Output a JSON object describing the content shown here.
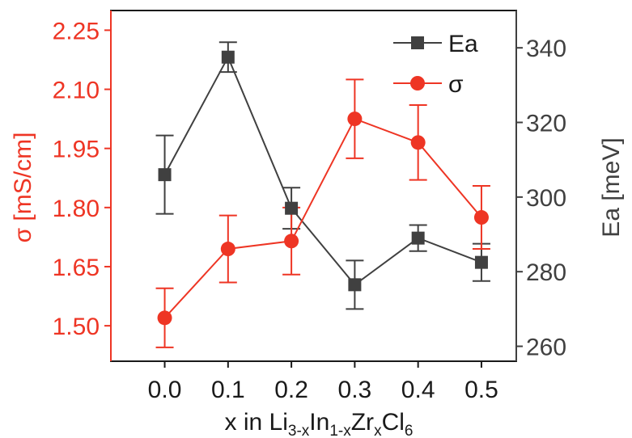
{
  "chart_data": {
    "type": "line",
    "x": [
      0.0,
      0.1,
      0.2,
      0.3,
      0.4,
      0.5
    ],
    "x_tick_labels": [
      "0.0",
      "0.1",
      "0.2",
      "0.3",
      "0.4",
      "0.5"
    ],
    "xlim": [
      -0.085,
      0.555
    ],
    "xlabel": {
      "prefix": "x in Li",
      "sub1": "3-x",
      "mid1": "In",
      "sub2": "1-x",
      "mid2": "Zr",
      "sub3": "x",
      "mid3": "Cl",
      "sub4": "6"
    },
    "y_left": {
      "label": "σ [mS/cm]",
      "lim": [
        1.41,
        2.3
      ],
      "ticks": [
        1.5,
        1.65,
        1.8,
        1.95,
        2.1,
        2.25
      ],
      "tick_labels": [
        "1.50",
        "1.65",
        "1.80",
        "1.95",
        "2.10",
        "2.25"
      ],
      "color": "#ee3524"
    },
    "y_right": {
      "label": "Ea [meV]",
      "lim": [
        256,
        350
      ],
      "ticks": [
        260,
        280,
        300,
        320,
        340
      ],
      "tick_labels": [
        "260",
        "280",
        "300",
        "320",
        "340"
      ],
      "color": "#404040"
    },
    "series": [
      {
        "name": "Ea",
        "axis": "right",
        "marker": "square",
        "color": "#404040",
        "values": [
          306,
          337.5,
          297,
          276.5,
          289,
          282.5
        ],
        "errors": [
          10.5,
          4,
          5.5,
          6.5,
          3.5,
          5
        ]
      },
      {
        "name": "σ",
        "axis": "left",
        "marker": "circle",
        "color": "#ee3524",
        "values": [
          1.52,
          1.695,
          1.715,
          2.025,
          1.965,
          1.775
        ],
        "errors": [
          0.075,
          0.085,
          0.085,
          0.1,
          0.095,
          0.08
        ]
      }
    ],
    "legend": {
      "placement": "top-right",
      "entries": [
        "Ea",
        "σ"
      ]
    },
    "grid": false
  }
}
